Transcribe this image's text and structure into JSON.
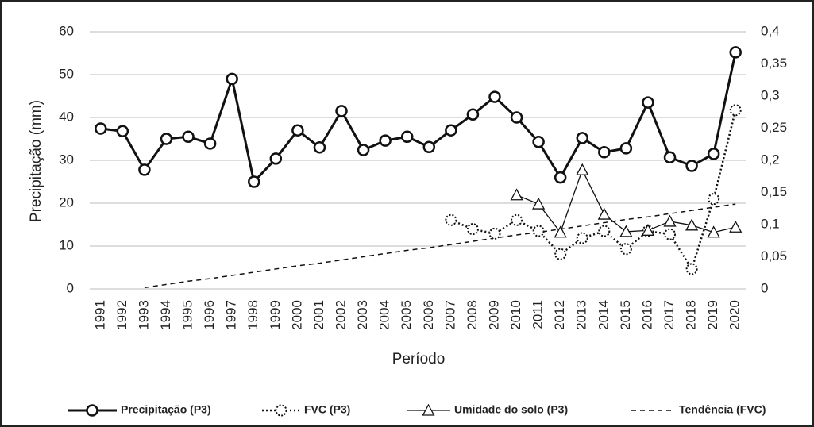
{
  "chart_data": {
    "type": "line",
    "x_label": "Período",
    "y_label": "Precipitação (mm)",
    "categories": [
      "1991",
      "1992",
      "1993",
      "1994",
      "1995",
      "1996",
      "1997",
      "1998",
      "1999",
      "2000",
      "2001",
      "2002",
      "2003",
      "2004",
      "2005",
      "2006",
      "2007",
      "2008",
      "2009",
      "2010",
      "2011",
      "2012",
      "2013",
      "2014",
      "2015",
      "2016",
      "2017",
      "2018",
      "2019",
      "2020"
    ],
    "ylim": [
      0,
      60
    ],
    "yticks": [
      0,
      10,
      20,
      30,
      40,
      50,
      60
    ],
    "y2lim": [
      0,
      0.4
    ],
    "y2ticks": [
      0,
      {
        "value": 0.05,
        "label": "0,05"
      },
      {
        "value": 0.1,
        "label": "0,1"
      },
      {
        "value": 0.15,
        "label": "0,15"
      },
      {
        "value": 0.2,
        "label": "0,2"
      },
      {
        "value": 0.25,
        "label": "0,25"
      },
      {
        "value": 0.3,
        "label": "0,3"
      },
      {
        "value": 0.35,
        "label": "0,35"
      },
      {
        "value": 0.4,
        "label": "0,4"
      }
    ],
    "grid": true,
    "legend": "bottom",
    "series": [
      {
        "name": "Precipitação (P3)",
        "color": "#111111",
        "dash": "solid",
        "width": 3,
        "marker": "circle",
        "values": [
          37.4,
          36.8,
          27.8,
          35,
          35.5,
          33.9,
          49,
          25,
          30.4,
          37,
          33,
          41.5,
          32.4,
          34.6,
          35.5,
          33.1,
          37,
          40.7,
          44.8,
          40,
          34.3,
          26,
          35.2,
          31.9,
          32.8,
          43.5,
          30.7,
          28.7,
          31.5,
          55.2
        ]
      },
      {
        "name": "FVC (P3)",
        "color": "#111111",
        "dash": "dotted",
        "width": 2.5,
        "marker": "circle-dotted",
        "axis": "y2",
        "values": [
          null,
          null,
          null,
          null,
          null,
          null,
          null,
          null,
          null,
          null,
          null,
          null,
          null,
          null,
          null,
          null,
          0.107,
          0.093,
          0.086,
          0.107,
          0.09,
          0.054,
          0.079,
          0.09,
          0.062,
          0.09,
          0.085,
          0.031,
          0.14,
          0.278
        ]
      },
      {
        "name": "Umidade do solo (P3)",
        "color": "#111111",
        "dash": "solid",
        "width": 1.3,
        "marker": "triangle",
        "axis": "y2",
        "values": [
          null,
          null,
          null,
          null,
          null,
          null,
          null,
          null,
          null,
          null,
          null,
          null,
          null,
          null,
          null,
          null,
          null,
          null,
          null,
          0.146,
          0.132,
          0.088,
          0.185,
          0.116,
          0.089,
          0.091,
          0.105,
          0.099,
          0.088,
          0.096
        ]
      },
      {
        "name": "Tendência (FVC)",
        "color": "#111111",
        "dash": "dashed",
        "width": 1.5,
        "marker": "none",
        "axis": "y2",
        "values": [
          null,
          null,
          0.002,
          0.007,
          0.012,
          0.016,
          0.021,
          0.026,
          0.031,
          0.036,
          0.04,
          0.045,
          0.05,
          0.055,
          0.06,
          0.064,
          0.069,
          0.074,
          0.079,
          0.084,
          0.088,
          0.093,
          0.098,
          0.103,
          0.108,
          0.112,
          0.117,
          0.122,
          0.127,
          0.132
        ]
      }
    ]
  }
}
